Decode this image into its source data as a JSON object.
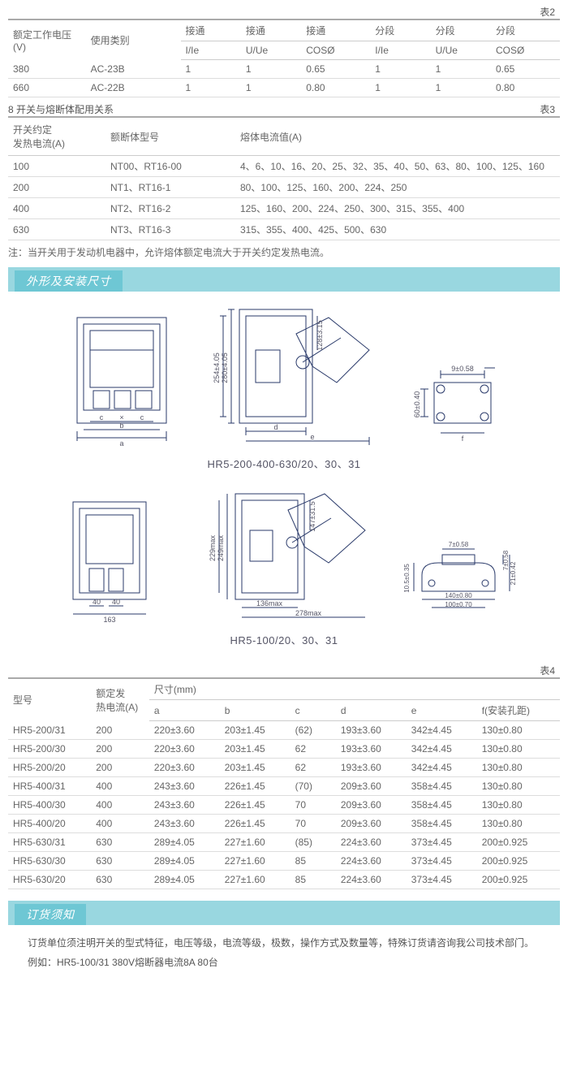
{
  "table2": {
    "label": "表2",
    "header_row1": [
      "额定工作电压(V)",
      "使用类别",
      "接通",
      "接通",
      "接通",
      "分段",
      "分段",
      "分段"
    ],
    "header_row2": [
      "",
      "",
      "I/Ie",
      "U/Ue",
      "COSØ",
      "I/Ie",
      "U/Ue",
      "COSØ"
    ],
    "rows": [
      [
        "380",
        "AC-23B",
        "1",
        "1",
        "0.65",
        "1",
        "1",
        "0.65"
      ],
      [
        "660",
        "AC-22B",
        "1",
        "1",
        "0.80",
        "1",
        "1",
        "0.80"
      ]
    ],
    "col_widths": [
      "90px",
      "110px",
      "70px",
      "70px",
      "80px",
      "70px",
      "70px",
      "80px"
    ]
  },
  "section8_title": "8 开关与熔断体配用关系",
  "table3": {
    "label": "表3",
    "headers": [
      "开关约定发热电流(A)",
      "额断体型号",
      "熔体电流值(A)"
    ],
    "rows": [
      [
        "100",
        "NT00、RT16-00",
        "4、6、10、16、20、25、32、35、40、50、63、80、100、125、160"
      ],
      [
        "200",
        "NT1、RT16-1",
        "80、100、125、160、200、224、250"
      ],
      [
        "400",
        "NT2、RT16-2",
        "125、160、200、224、250、300、315、355、400"
      ],
      [
        "630",
        "NT3、RT16-3",
        "315、355、400、425、500、630"
      ]
    ],
    "col_widths": [
      "120px",
      "160px",
      "auto"
    ]
  },
  "note_text": "注：当开关用于发动机电器中，允许熔体额定电流大于开关约定发热电流。",
  "section_dims_title": "外形及安装尺寸",
  "diagram1": {
    "caption": "HR5-200-400-630/20、30、31",
    "labels": {
      "h1": "280±4.05",
      "h2": "254±4.05",
      "h3": "128±3.15",
      "top": "9±0.58",
      "side": "60±0.40",
      "a": "a",
      "b": "b",
      "c": "c",
      "x": "×",
      "d": "d",
      "e": "e",
      "f": "f"
    }
  },
  "diagram2": {
    "caption": "HR5-100/20、30、31",
    "labels": {
      "w1": "163",
      "w2": "40",
      "w3": "40",
      "h1": "249max",
      "h2": "229max",
      "h3": "147±31.5",
      "d1": "136max",
      "d2": "278max",
      "r1": "21±0.42",
      "r2": "10.5±0.35",
      "r3": "7±0.58",
      "r4": "7±0.58",
      "r5": "100±0.70",
      "r6": "140±0.80"
    }
  },
  "table4": {
    "label": "表4",
    "header_row1": [
      "型号",
      "额定发热电流(A)",
      "尺寸(mm)",
      "",
      "",
      "",
      "",
      ""
    ],
    "header_row2": [
      "",
      "",
      "a",
      "b",
      "c",
      "d",
      "e",
      "f(安装孔距)"
    ],
    "rows": [
      [
        "HR5-200/31",
        "200",
        "220±3.60",
        "203±1.45",
        "(62)",
        "193±3.60",
        "342±4.45",
        "130±0.80"
      ],
      [
        "HR5-200/30",
        "200",
        "220±3.60",
        "203±1.45",
        "62",
        "193±3.60",
        "342±4.45",
        "130±0.80"
      ],
      [
        "HR5-200/20",
        "200",
        "220±3.60",
        "203±1.45",
        "62",
        "193±3.60",
        "342±4.45",
        "130±0.80"
      ],
      [
        "HR5-400/31",
        "400",
        "243±3.60",
        "226±1.45",
        "(70)",
        "209±3.60",
        "358±4.45",
        "130±0.80"
      ],
      [
        "HR5-400/30",
        "400",
        "243±3.60",
        "226±1.45",
        "70",
        "209±3.60",
        "358±4.45",
        "130±0.80"
      ],
      [
        "HR5-400/20",
        "400",
        "243±3.60",
        "226±1.45",
        "70",
        "209±3.60",
        "358±4.45",
        "130±0.80"
      ],
      [
        "HR5-630/31",
        "630",
        "289±4.05",
        "227±1.60",
        "(85)",
        "224±3.60",
        "373±4.45",
        "200±0.925"
      ],
      [
        "HR5-630/30",
        "630",
        "289±4.05",
        "227±1.60",
        "85",
        "224±3.60",
        "373±4.45",
        "200±0.925"
      ],
      [
        "HR5-630/20",
        "630",
        "289±4.05",
        "227±1.60",
        "85",
        "224±3.60",
        "373±4.45",
        "200±0.925"
      ]
    ],
    "col_widths": [
      "100px",
      "70px",
      "85px",
      "85px",
      "55px",
      "85px",
      "85px",
      "100px"
    ]
  },
  "section_order_title": "订货须知",
  "order_p1": "订货单位须注明开关的型式特征，电压等级，电流等级，极数，操作方式及数量等，特殊订货请咨询我公司技术部门。",
  "order_p2": "例如：HR5-100/31 380V熔断器电流8A 80台",
  "colors": {
    "header_bg": "#99d7e0",
    "header_inner": "#6ec7d4",
    "text": "#555555",
    "border": "#cccccc",
    "svg_stroke": "#2a3a6a"
  }
}
